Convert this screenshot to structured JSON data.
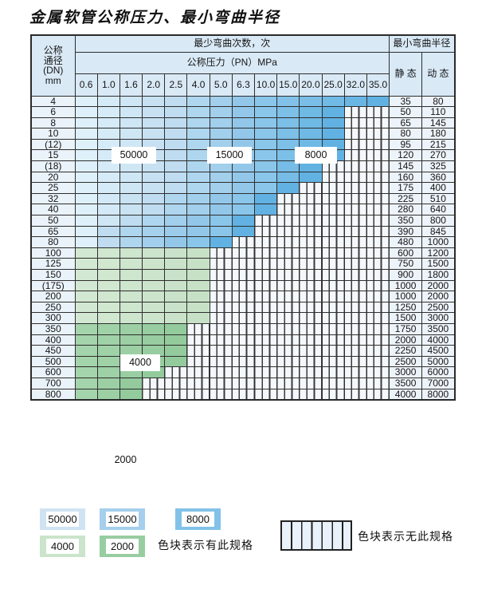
{
  "title": "金属软管公称压力、最小弯曲半径",
  "table": {
    "dn_header_lines": [
      "公称",
      "通径",
      "(DN)",
      "mm"
    ],
    "bend_cycles_header": "最少弯曲次数，次",
    "pressure_header": "公称压力（PN）MPa",
    "radius_header": "最小弯曲半径",
    "static_header": "静 态",
    "dynamic_header": "动 态",
    "pressures": [
      "0.6",
      "1.0",
      "1.6",
      "2.0",
      "2.5",
      "4.0",
      "5.0",
      "6.3",
      "10.0",
      "15.0",
      "20.0",
      "25.0",
      "32.0",
      "35.0"
    ],
    "rows": [
      {
        "dn": "4",
        "zones": [
          {
            "cycles": "50000",
            "cols": 5
          },
          {
            "cycles": "15000",
            "cols": 3
          },
          {
            "cycles": "8000",
            "cols": 6
          }
        ],
        "static": "35",
        "dynamic": "80"
      },
      {
        "dn": "6",
        "zones": [
          {
            "cycles": "50000",
            "cols": 5
          },
          {
            "cycles": "15000",
            "cols": 3
          },
          {
            "cycles": "8000",
            "cols": 4
          }
        ],
        "static": "50",
        "dynamic": "110"
      },
      {
        "dn": "8",
        "zones": [
          {
            "cycles": "50000",
            "cols": 5
          },
          {
            "cycles": "15000",
            "cols": 3
          },
          {
            "cycles": "8000",
            "cols": 4
          }
        ],
        "static": "65",
        "dynamic": "145"
      },
      {
        "dn": "10",
        "zones": [
          {
            "cycles": "50000",
            "cols": 5
          },
          {
            "cycles": "15000",
            "cols": 3
          },
          {
            "cycles": "8000",
            "cols": 4
          }
        ],
        "static": "80",
        "dynamic": "180"
      },
      {
        "dn": "(12)",
        "zones": [
          {
            "cycles": "50000",
            "cols": 5
          },
          {
            "cycles": "15000",
            "cols": 3
          },
          {
            "cycles": "8000",
            "cols": 4
          }
        ],
        "static": "95",
        "dynamic": "215"
      },
      {
        "dn": "15",
        "zones": [
          {
            "cycles": "50000",
            "cols": 5
          },
          {
            "cycles": "15000",
            "cols": 3
          },
          {
            "cycles": "8000",
            "cols": 4
          }
        ],
        "static": "120",
        "dynamic": "270"
      },
      {
        "dn": "(18)",
        "zones": [
          {
            "cycles": "50000",
            "cols": 5
          },
          {
            "cycles": "15000",
            "cols": 3
          },
          {
            "cycles": "8000",
            "cols": 3
          }
        ],
        "static": "145",
        "dynamic": "325"
      },
      {
        "dn": "20",
        "zones": [
          {
            "cycles": "50000",
            "cols": 5
          },
          {
            "cycles": "15000",
            "cols": 3
          },
          {
            "cycles": "8000",
            "cols": 3
          }
        ],
        "static": "160",
        "dynamic": "360"
      },
      {
        "dn": "25",
        "zones": [
          {
            "cycles": "50000",
            "cols": 5
          },
          {
            "cycles": "15000",
            "cols": 3
          },
          {
            "cycles": "8000",
            "cols": 2
          }
        ],
        "static": "175",
        "dynamic": "400"
      },
      {
        "dn": "32",
        "zones": [
          {
            "cycles": "50000",
            "cols": 4
          },
          {
            "cycles": "15000",
            "cols": 3
          },
          {
            "cycles": "8000",
            "cols": 2
          }
        ],
        "static": "225",
        "dynamic": "510"
      },
      {
        "dn": "40",
        "zones": [
          {
            "cycles": "50000",
            "cols": 4
          },
          {
            "cycles": "15000",
            "cols": 3
          },
          {
            "cycles": "8000",
            "cols": 2
          }
        ],
        "static": "280",
        "dynamic": "640"
      },
      {
        "dn": "50",
        "zones": [
          {
            "cycles": "50000",
            "cols": 3
          },
          {
            "cycles": "15000",
            "cols": 3
          },
          {
            "cycles": "8000",
            "cols": 2
          }
        ],
        "static": "350",
        "dynamic": "800"
      },
      {
        "dn": "65",
        "zones": [
          {
            "cycles": "50000",
            "cols": 2
          },
          {
            "cycles": "15000",
            "cols": 4
          },
          {
            "cycles": "8000",
            "cols": 2
          }
        ],
        "static": "390",
        "dynamic": "845"
      },
      {
        "dn": "80",
        "zones": [
          {
            "cycles": "50000",
            "cols": 2
          },
          {
            "cycles": "15000",
            "cols": 3
          },
          {
            "cycles": "8000",
            "cols": 2
          }
        ],
        "static": "480",
        "dynamic": "1000"
      },
      {
        "dn": "100",
        "zones": [
          {
            "cycles": "4000",
            "cols": 6
          }
        ],
        "static": "600",
        "dynamic": "1200"
      },
      {
        "dn": "125",
        "zones": [
          {
            "cycles": "4000",
            "cols": 6
          }
        ],
        "static": "750",
        "dynamic": "1500"
      },
      {
        "dn": "150",
        "zones": [
          {
            "cycles": "4000",
            "cols": 6
          }
        ],
        "static": "900",
        "dynamic": "1800"
      },
      {
        "dn": "(175)",
        "zones": [
          {
            "cycles": "4000",
            "cols": 6
          }
        ],
        "static": "1000",
        "dynamic": "2000"
      },
      {
        "dn": "200",
        "zones": [
          {
            "cycles": "4000",
            "cols": 6
          }
        ],
        "static": "1000",
        "dynamic": "2000"
      },
      {
        "dn": "250",
        "zones": [
          {
            "cycles": "4000",
            "cols": 6
          }
        ],
        "static": "1250",
        "dynamic": "2500"
      },
      {
        "dn": "300",
        "zones": [
          {
            "cycles": "4000",
            "cols": 6
          }
        ],
        "static": "1500",
        "dynamic": "3000"
      },
      {
        "dn": "350",
        "zones": [
          {
            "cycles": "2000",
            "cols": 5
          }
        ],
        "static": "1750",
        "dynamic": "3500"
      },
      {
        "dn": "400",
        "zones": [
          {
            "cycles": "2000",
            "cols": 5
          }
        ],
        "static": "2000",
        "dynamic": "4000"
      },
      {
        "dn": "450",
        "zones": [
          {
            "cycles": "2000",
            "cols": 5
          }
        ],
        "static": "2250",
        "dynamic": "4500"
      },
      {
        "dn": "500",
        "zones": [
          {
            "cycles": "2000",
            "cols": 5
          }
        ],
        "static": "2500",
        "dynamic": "5000"
      },
      {
        "dn": "600",
        "zones": [
          {
            "cycles": "2000",
            "cols": 4
          }
        ],
        "static": "3000",
        "dynamic": "6000"
      },
      {
        "dn": "700",
        "zones": [
          {
            "cycles": "2000",
            "cols": 3
          }
        ],
        "static": "3500",
        "dynamic": "7000"
      },
      {
        "dn": "800",
        "zones": [
          {
            "cycles": "2000",
            "cols": 3
          }
        ],
        "static": "4000",
        "dynamic": "8000"
      }
    ]
  },
  "overlay_labels": [
    "50000",
    "15000",
    "8000",
    "4000",
    "2000"
  ],
  "legend": {
    "items": [
      {
        "label": "50000",
        "color": "#cfe3f3"
      },
      {
        "label": "15000",
        "color": "#a5cfec"
      },
      {
        "label": "8000",
        "color": "#82c2e8"
      },
      {
        "label": "4000",
        "color": "#cbe4cb"
      },
      {
        "label": "2000",
        "color": "#98cda1"
      }
    ],
    "has_spec_text": "色块表示有此规格",
    "no_spec_text": "色块表示无此规格"
  },
  "colors": {
    "zone_gradients": {
      "50000": [
        "#def0fa",
        "#bfdcf0"
      ],
      "15000": [
        "#aed6ef",
        "#93c7e9"
      ],
      "8000": [
        "#8ac6ea",
        "#61b2e2"
      ],
      "4000": [
        "#d3e8d2",
        "#c7e1c7"
      ],
      "2000": [
        "#a4d4ab",
        "#93cb9d"
      ]
    },
    "header_bg": "#d9e9f6",
    "hatch_bg": "#f4f8fc",
    "border": "#2e2e2e"
  }
}
